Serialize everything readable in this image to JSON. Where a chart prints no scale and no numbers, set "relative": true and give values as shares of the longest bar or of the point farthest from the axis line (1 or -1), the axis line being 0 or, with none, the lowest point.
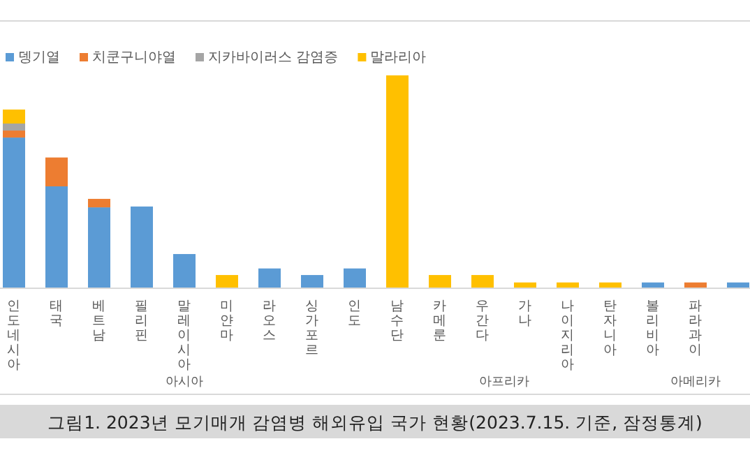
{
  "chart_data": {
    "type": "bar",
    "stacked": true,
    "relative": true,
    "legend": "top left",
    "categories": [
      "인도네시아",
      "태국",
      "베트남",
      "필리핀",
      "말레이시아",
      "미얀마",
      "라오스",
      "싱가포르",
      "인도",
      "남수단",
      "카메룬",
      "우간다",
      "가나",
      "나이지리아",
      "탄자니아",
      "볼리비아",
      "파라과이",
      null
    ],
    "series": [
      {
        "name": "뎅기열",
        "color": "#5b9bd5",
        "values": [
          0.707,
          0.477,
          0.378,
          0.382,
          0.158,
          null,
          0.09,
          0.059,
          0.09,
          null,
          null,
          null,
          null,
          null,
          null,
          0.024,
          null,
          0.024
        ]
      },
      {
        "name": "치쿤구니야열",
        "color": "#ed7d31",
        "values": [
          0.033,
          0.136,
          0.04,
          null,
          null,
          null,
          null,
          null,
          null,
          null,
          null,
          null,
          null,
          null,
          null,
          null,
          0.024,
          null
        ]
      },
      {
        "name": "지카바이러스 감염증",
        "color": "#a5a5a5",
        "values": [
          0.033,
          null,
          null,
          null,
          null,
          null,
          null,
          null,
          null,
          null,
          null,
          null,
          null,
          null,
          null,
          null,
          null,
          null
        ]
      },
      {
        "name": "말라리아",
        "color": "#ffc000",
        "values": [
          0.066,
          null,
          null,
          null,
          null,
          0.059,
          null,
          null,
          null,
          1,
          0.059,
          0.059,
          0.024,
          0.024,
          0.024,
          null,
          null,
          null
        ]
      }
    ],
    "annotations": [
      "아시아",
      "아프리카",
      "아메리카",
      "그림1. 2023년 모기매개 감염병 해외유입 국가 현황(2023.7.15. 기준, 잠정통계)"
    ]
  }
}
